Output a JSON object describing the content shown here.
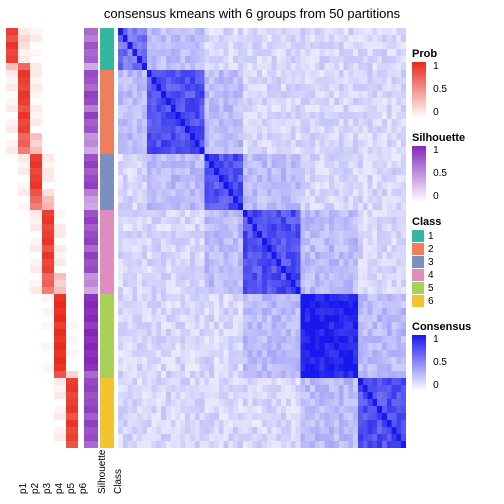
{
  "title": "consensus kmeans with 6 groups from 50 partitions",
  "plot": {
    "background_color": "#ffffff",
    "title_fontsize": 13,
    "n_samples": 60,
    "prob_columns": [
      "p1",
      "p2",
      "p3",
      "p4",
      "p5",
      "p6"
    ],
    "anno_columns": [
      "Silhouette",
      "Class"
    ],
    "class_info": {
      "colors": [
        "#34b6a0",
        "#ef7e5e",
        "#7d8fc1",
        "#e18cbf",
        "#a9d15a",
        "#f2c52e"
      ],
      "labels": [
        "1",
        "2",
        "3",
        "4",
        "5",
        "6"
      ],
      "block_sizes": [
        6,
        12,
        8,
        12,
        12,
        10
      ]
    },
    "prob_palette": {
      "low": "#ffffff",
      "high": "#e8291c"
    },
    "silhouette_palette": {
      "low": "#ffffff",
      "high": "#8528b8"
    },
    "consensus_palette": {
      "low": "#ffffff",
      "high": "#1818ec"
    },
    "legends": {
      "prob": {
        "title": "Prob",
        "ticks": [
          {
            "v": "1",
            "pos": 0
          },
          {
            "v": "0.5",
            "pos": 0.5
          },
          {
            "v": "0",
            "pos": 1
          }
        ]
      },
      "silhouette": {
        "title": "Silhouette",
        "ticks": [
          {
            "v": "1",
            "pos": 0
          },
          {
            "v": "0.5",
            "pos": 0.5
          },
          {
            "v": "0",
            "pos": 1
          }
        ]
      },
      "class_title": "Class",
      "consensus": {
        "title": "Consensus",
        "ticks": [
          {
            "v": "1",
            "pos": 0
          },
          {
            "v": "0.5",
            "pos": 0.5
          },
          {
            "v": "0",
            "pos": 1
          }
        ]
      }
    },
    "prob_data": [
      [
        0.9,
        0.1,
        0.05,
        0.0,
        0.0,
        0.0
      ],
      [
        0.8,
        0.2,
        0.1,
        0.0,
        0.0,
        0.0
      ],
      [
        0.95,
        0.15,
        0.0,
        0.0,
        0.0,
        0.0
      ],
      [
        0.85,
        0.05,
        0.05,
        0.0,
        0.0,
        0.0
      ],
      [
        0.9,
        0.1,
        0.0,
        0.0,
        0.0,
        0.0
      ],
      [
        0.3,
        0.7,
        0.1,
        0.0,
        0.0,
        0.0
      ],
      [
        0.1,
        0.95,
        0.1,
        0.0,
        0.0,
        0.0
      ],
      [
        0.05,
        0.9,
        0.05,
        0.0,
        0.0,
        0.0
      ],
      [
        0.1,
        0.85,
        0.1,
        0.0,
        0.0,
        0.0
      ],
      [
        0.0,
        0.95,
        0.05,
        0.0,
        0.0,
        0.0
      ],
      [
        0.05,
        0.9,
        0.0,
        0.0,
        0.0,
        0.0
      ],
      [
        0.1,
        0.8,
        0.1,
        0.0,
        0.0,
        0.0
      ],
      [
        0.0,
        0.95,
        0.05,
        0.0,
        0.0,
        0.0
      ],
      [
        0.05,
        0.85,
        0.1,
        0.0,
        0.0,
        0.0
      ],
      [
        0.1,
        0.9,
        0.0,
        0.0,
        0.0,
        0.0
      ],
      [
        0.0,
        0.7,
        0.3,
        0.0,
        0.0,
        0.0
      ],
      [
        0.05,
        0.75,
        0.2,
        0.0,
        0.0,
        0.0
      ],
      [
        0.1,
        0.6,
        0.3,
        0.0,
        0.0,
        0.0
      ],
      [
        0.0,
        0.1,
        0.9,
        0.1,
        0.0,
        0.0
      ],
      [
        0.0,
        0.05,
        0.95,
        0.05,
        0.0,
        0.0
      ],
      [
        0.0,
        0.1,
        0.85,
        0.1,
        0.0,
        0.0
      ],
      [
        0.0,
        0.0,
        0.9,
        0.1,
        0.0,
        0.0
      ],
      [
        0.0,
        0.05,
        0.95,
        0.0,
        0.0,
        0.0
      ],
      [
        0.0,
        0.1,
        0.8,
        0.15,
        0.0,
        0.0
      ],
      [
        0.0,
        0.0,
        0.7,
        0.3,
        0.0,
        0.0
      ],
      [
        0.0,
        0.05,
        0.6,
        0.35,
        0.0,
        0.0
      ],
      [
        0.0,
        0.0,
        0.1,
        0.9,
        0.05,
        0.0
      ],
      [
        0.0,
        0.0,
        0.05,
        0.95,
        0.0,
        0.0
      ],
      [
        0.0,
        0.0,
        0.1,
        0.85,
        0.1,
        0.0
      ],
      [
        0.0,
        0.0,
        0.0,
        0.9,
        0.1,
        0.0
      ],
      [
        0.0,
        0.0,
        0.05,
        0.95,
        0.0,
        0.0
      ],
      [
        0.0,
        0.0,
        0.1,
        0.8,
        0.1,
        0.0
      ],
      [
        0.0,
        0.0,
        0.0,
        0.95,
        0.05,
        0.0
      ],
      [
        0.0,
        0.0,
        0.05,
        0.85,
        0.1,
        0.0
      ],
      [
        0.0,
        0.0,
        0.1,
        0.9,
        0.0,
        0.0
      ],
      [
        0.0,
        0.0,
        0.0,
        0.7,
        0.3,
        0.0
      ],
      [
        0.0,
        0.0,
        0.05,
        0.75,
        0.2,
        0.0
      ],
      [
        0.0,
        0.0,
        0.1,
        0.6,
        0.3,
        0.0
      ],
      [
        0.0,
        0.0,
        0.0,
        0.05,
        0.95,
        0.0
      ],
      [
        0.0,
        0.0,
        0.0,
        0.0,
        1.0,
        0.0
      ],
      [
        0.0,
        0.0,
        0.0,
        0.05,
        0.95,
        0.0
      ],
      [
        0.0,
        0.0,
        0.0,
        0.0,
        1.0,
        0.0
      ],
      [
        0.0,
        0.0,
        0.0,
        0.05,
        0.9,
        0.05
      ],
      [
        0.0,
        0.0,
        0.0,
        0.0,
        1.0,
        0.0
      ],
      [
        0.0,
        0.0,
        0.0,
        0.0,
        0.95,
        0.05
      ],
      [
        0.0,
        0.0,
        0.0,
        0.05,
        1.0,
        0.0
      ],
      [
        0.0,
        0.0,
        0.0,
        0.0,
        0.95,
        0.05
      ],
      [
        0.0,
        0.0,
        0.0,
        0.0,
        1.0,
        0.0
      ],
      [
        0.0,
        0.0,
        0.0,
        0.05,
        0.95,
        0.0
      ],
      [
        0.0,
        0.0,
        0.0,
        0.0,
        0.8,
        0.2
      ],
      [
        0.0,
        0.0,
        0.0,
        0.0,
        0.1,
        0.9
      ],
      [
        0.0,
        0.0,
        0.0,
        0.0,
        0.05,
        0.95
      ],
      [
        0.0,
        0.0,
        0.0,
        0.0,
        0.1,
        0.85
      ],
      [
        0.0,
        0.0,
        0.0,
        0.0,
        0.0,
        0.9
      ],
      [
        0.0,
        0.0,
        0.0,
        0.0,
        0.05,
        0.95
      ],
      [
        0.0,
        0.0,
        0.0,
        0.0,
        0.1,
        0.8
      ],
      [
        0.0,
        0.0,
        0.0,
        0.0,
        0.0,
        0.95
      ],
      [
        0.0,
        0.0,
        0.0,
        0.0,
        0.05,
        0.85
      ],
      [
        0.0,
        0.0,
        0.0,
        0.0,
        0.1,
        0.9
      ],
      [
        0.0,
        0.0,
        0.0,
        0.0,
        0.0,
        0.8
      ]
    ],
    "silhouette_data": [
      0.7,
      0.6,
      0.8,
      0.7,
      0.75,
      0.4,
      0.85,
      0.8,
      0.7,
      0.9,
      0.85,
      0.6,
      0.9,
      0.75,
      0.8,
      0.5,
      0.55,
      0.4,
      0.8,
      0.9,
      0.75,
      0.85,
      0.9,
      0.6,
      0.45,
      0.4,
      0.8,
      0.9,
      0.75,
      0.85,
      0.9,
      0.7,
      0.9,
      0.8,
      0.85,
      0.5,
      0.55,
      0.4,
      0.95,
      1.0,
      0.95,
      1.0,
      0.9,
      1.0,
      0.95,
      1.0,
      0.95,
      1.0,
      0.95,
      0.7,
      0.85,
      0.9,
      0.8,
      0.85,
      0.9,
      0.75,
      0.9,
      0.8,
      0.85,
      0.7
    ]
  }
}
